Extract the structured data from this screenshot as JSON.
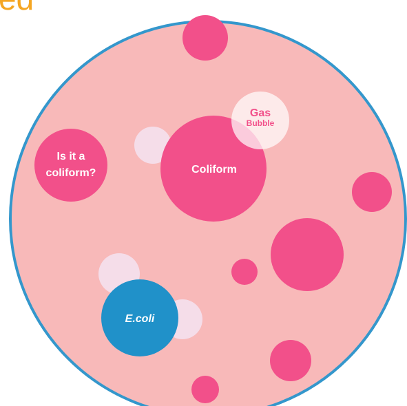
{
  "heading": "ed",
  "nodes": [
    {
      "label": "Is it a"
    },
    {
      "label": "coliform?"
    },
    {
      "label": "Coliform"
    },
    {
      "label": "Gas"
    },
    {
      "label": "Bubble"
    },
    {
      "label": "E.coli"
    }
  ]
}
